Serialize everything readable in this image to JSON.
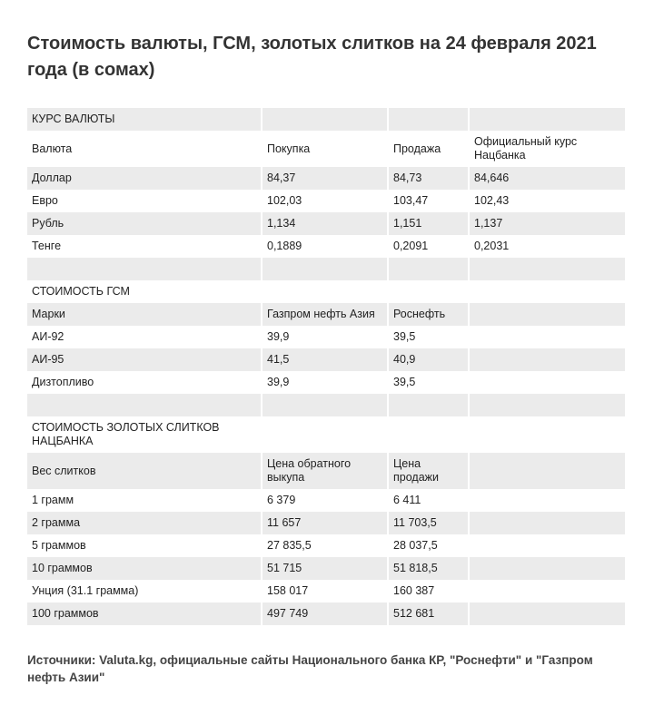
{
  "title": "Стоимость валюты, ГСМ, золотых слитков на 24 февраля 2021 года (в сомах)",
  "rows": [
    [
      "КУРС ВАЛЮТЫ",
      "",
      "",
      ""
    ],
    [
      "Валюта",
      "Покупка",
      "Продажа",
      "Официальный курс Нацбанка"
    ],
    [
      "Доллар",
      "84,37",
      "84,73",
      "84,646"
    ],
    [
      "Евро",
      "102,03",
      "103,47",
      "102,43"
    ],
    [
      "Рубль",
      "1,134",
      "1,151",
      "1,137"
    ],
    [
      "Тенге",
      "0,1889",
      "0,2091",
      "0,2031"
    ],
    [
      "",
      "",
      "",
      ""
    ],
    [
      "СТОИМОСТЬ ГСМ",
      "",
      "",
      ""
    ],
    [
      "Марки",
      "Газпром нефть Азия",
      "Роснефть",
      ""
    ],
    [
      "АИ-92",
      "39,9",
      "39,5",
      ""
    ],
    [
      "АИ-95",
      "41,5",
      "40,9",
      ""
    ],
    [
      "Дизтопливо",
      "39,9",
      "39,5",
      ""
    ],
    [
      "",
      "",
      "",
      ""
    ],
    [
      "СТОИМОСТЬ ЗОЛОТЫХ СЛИТКОВ НАЦБАНКА",
      "",
      "",
      ""
    ],
    [
      "Вес слитков",
      "Цена обратного выкупа",
      "Цена продажи",
      ""
    ],
    [
      "1 грамм",
      "6 379",
      "6 411",
      ""
    ],
    [
      "2 грамма",
      "11 657",
      "11 703,5",
      ""
    ],
    [
      "5 граммов",
      "27 835,5",
      "28 037,5",
      ""
    ],
    [
      "10 граммов",
      "51 715",
      "51 818,5",
      ""
    ],
    [
      "Унция (31.1 грамма)",
      "158 017",
      "160 387",
      ""
    ],
    [
      "100 граммов",
      "497 749",
      "512 681",
      ""
    ]
  ],
  "source": "Источники: Valuta.kg, официальные сайты Национального банка КР, \"Роснефти\" и \"Газпром нефть Азии\""
}
